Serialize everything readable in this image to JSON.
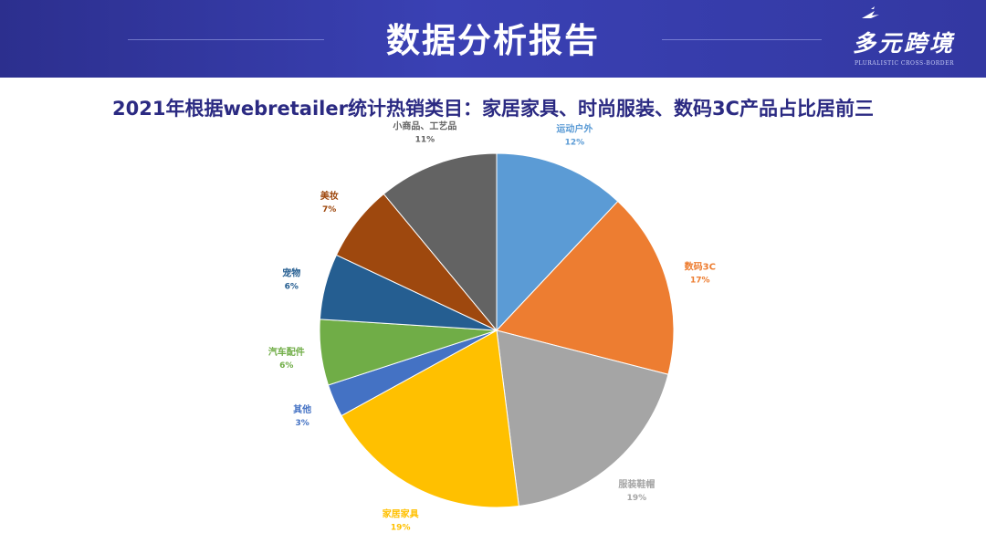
{
  "header": {
    "title": "数据分析报告",
    "logo_text": "多元跨境",
    "logo_subtext": "PLURALISTIC CROSS-BORDER"
  },
  "chart_data": {
    "type": "pie",
    "title": "2021年根据webretailer统计热销类目：家居家具、时尚服装、数码3C产品占比居前三",
    "start": "top",
    "direction": "clockwise",
    "slices": [
      {
        "label": "运动户外",
        "value": 12,
        "value_label": "12%",
        "color": "#5b9bd5"
      },
      {
        "label": "数码3C",
        "value": 17,
        "value_label": "17%",
        "color": "#ed7d31"
      },
      {
        "label": "服装鞋帽",
        "value": 19,
        "value_label": "19%",
        "color": "#a5a5a5"
      },
      {
        "label": "家居家具",
        "value": 19,
        "value_label": "19%",
        "color": "#ffc000"
      },
      {
        "label": "其他",
        "value": 3,
        "value_label": "3%",
        "color": "#4472c4"
      },
      {
        "label": "汽车配件",
        "value": 6,
        "value_label": "6%",
        "color": "#70ad47"
      },
      {
        "label": "宠物",
        "value": 6,
        "value_label": "6%",
        "color": "#255e91"
      },
      {
        "label": "美妆",
        "value": 7,
        "value_label": "7%",
        "color": "#9e480e"
      },
      {
        "label": "小商品、工艺品",
        "value": 11,
        "value_label": "11%",
        "color": "#636363"
      }
    ]
  }
}
